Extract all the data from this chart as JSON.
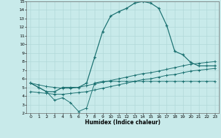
{
  "xlabel": "Humidex (Indice chaleur)",
  "xlim": [
    -0.5,
    23.5
  ],
  "ylim": [
    2,
    15
  ],
  "xticks": [
    0,
    1,
    2,
    3,
    4,
    5,
    6,
    7,
    8,
    9,
    10,
    11,
    12,
    13,
    14,
    15,
    16,
    17,
    18,
    19,
    20,
    21,
    22,
    23
  ],
  "yticks": [
    2,
    3,
    4,
    5,
    6,
    7,
    8,
    9,
    10,
    11,
    12,
    13,
    14,
    15
  ],
  "bg_color": "#c8eaea",
  "grid_color": "#b0d8d8",
  "line_color": "#1a7070",
  "line1_x": [
    0,
    1,
    2,
    3,
    4,
    5,
    6,
    7,
    8,
    9,
    10,
    11,
    12,
    13,
    14,
    15,
    16,
    17,
    18,
    19,
    20,
    21,
    22,
    23
  ],
  "line1_y": [
    5.5,
    5.0,
    4.5,
    4.5,
    5.0,
    5.0,
    5.0,
    5.5,
    8.5,
    11.5,
    13.3,
    13.8,
    14.2,
    14.8,
    15.0,
    14.8,
    14.2,
    12.2,
    9.2,
    8.8,
    7.9,
    7.5,
    7.5,
    7.5
  ],
  "line2_x": [
    0,
    1,
    2,
    3,
    4,
    5,
    6,
    7,
    8,
    9,
    10,
    11,
    12,
    13,
    14,
    15,
    16,
    17,
    18,
    19,
    20,
    21,
    22,
    23
  ],
  "line2_y": [
    5.5,
    5.3,
    5.1,
    5.0,
    4.9,
    4.9,
    5.0,
    5.2,
    5.4,
    5.6,
    5.8,
    6.0,
    6.2,
    6.4,
    6.6,
    6.7,
    6.9,
    7.1,
    7.3,
    7.5,
    7.7,
    7.8,
    7.9,
    8.0
  ],
  "line3_x": [
    0,
    1,
    2,
    3,
    4,
    5,
    6,
    7,
    8,
    9,
    10,
    11,
    12,
    13,
    14,
    15,
    16,
    17,
    18,
    19,
    20,
    21,
    22,
    23
  ],
  "line3_y": [
    4.5,
    4.4,
    4.3,
    4.2,
    4.2,
    4.3,
    4.4,
    4.5,
    4.7,
    4.9,
    5.1,
    5.3,
    5.5,
    5.7,
    5.9,
    6.0,
    6.2,
    6.4,
    6.5,
    6.7,
    6.9,
    7.0,
    7.1,
    7.2
  ],
  "line4_x": [
    0,
    1,
    2,
    3,
    4,
    5,
    6,
    7,
    8,
    9,
    10,
    11,
    12,
    13,
    14,
    15,
    16,
    17,
    18,
    19,
    20,
    21,
    22,
    23
  ],
  "line4_y": [
    5.5,
    5.0,
    4.5,
    3.5,
    3.8,
    3.2,
    2.2,
    2.6,
    5.5,
    5.7,
    5.7,
    5.7,
    5.7,
    5.7,
    5.7,
    5.7,
    5.7,
    5.7,
    5.7,
    5.7,
    5.7,
    5.7,
    5.7,
    5.7
  ]
}
